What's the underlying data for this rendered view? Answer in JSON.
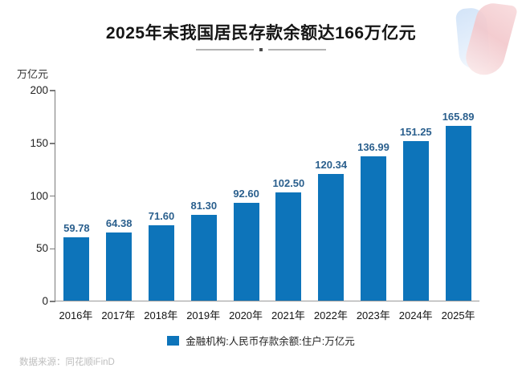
{
  "header": {
    "title": "2025年末我国居民存款余额达166万亿元"
  },
  "chart_data": {
    "type": "bar",
    "title": "2025年末我国居民存款余额达166万亿元",
    "unit_label": "万亿元",
    "categories": [
      "2016年",
      "2017年",
      "2018年",
      "2019年",
      "2020年",
      "2021年",
      "2022年",
      "2023年",
      "2024年",
      "2025年"
    ],
    "values": [
      59.78,
      64.38,
      71.6,
      81.3,
      92.6,
      102.5,
      120.34,
      136.99,
      151.25,
      165.89
    ],
    "value_label_decimals": 2,
    "ylim": [
      0,
      200
    ],
    "yticks": [
      0,
      50,
      100,
      150,
      200
    ],
    "grid": false,
    "legend": "金融机构:人民币存款余额:住户:万亿元",
    "legend_position": "bottom",
    "colors": {
      "bar": "#0d74ba",
      "value_label": "#2a5f8d",
      "axis": "#8a8a8a"
    }
  },
  "footer": {
    "source": "数据来源：同花顺iFinD"
  }
}
